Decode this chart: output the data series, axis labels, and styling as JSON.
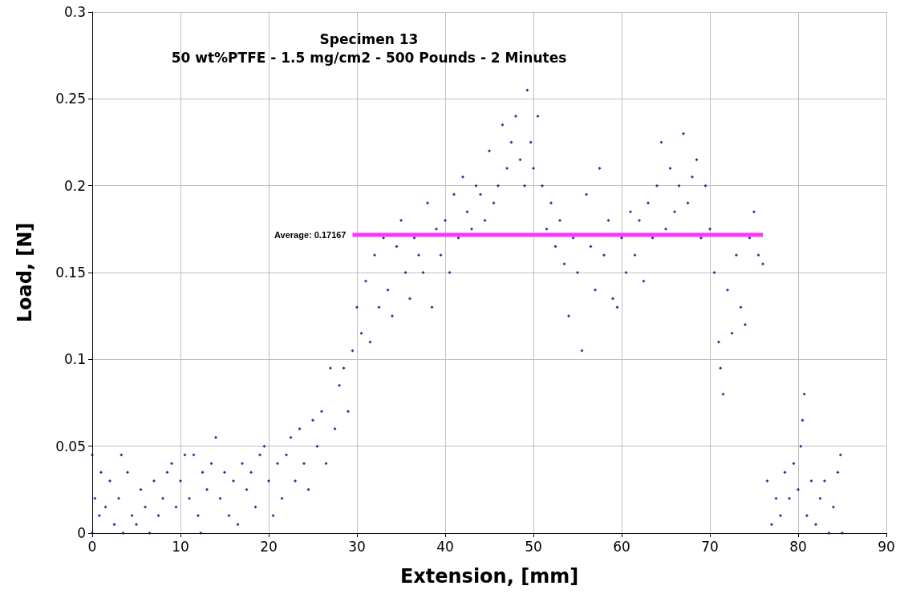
{
  "chart_data": {
    "type": "scatter",
    "title": "Specimen 13",
    "subtitle": "50 wt%PTFE - 1.5 mg/cm2 - 500 Pounds - 2 Minutes",
    "xlabel": "Extension, [mm]",
    "ylabel": "Load, [N]",
    "xlim": [
      0,
      90
    ],
    "xticks": [
      0,
      10,
      20,
      30,
      40,
      50,
      60,
      70,
      80,
      90
    ],
    "ylim": [
      0,
      0.3
    ],
    "yticks": [
      0,
      0.05,
      0.1,
      0.15,
      0.2,
      0.25,
      0.3
    ],
    "grid": true,
    "marker": "diamond",
    "annotations": [
      {
        "text": "Average: 0.17167",
        "x": 29.5,
        "y": 0.17167
      }
    ],
    "series": [
      {
        "color": "#000080",
        "x": [
          0,
          0,
          0.3,
          0.8,
          1,
          1.5,
          2,
          2.5,
          3,
          3.3,
          3.5,
          4,
          4.5,
          5,
          5.5,
          6,
          6.5,
          7,
          7.5,
          8,
          8.5,
          9,
          9.5,
          10,
          10.5,
          11,
          11.5,
          12,
          12.3,
          12.5,
          13,
          13.5,
          14,
          14.5,
          15,
          15.5,
          16,
          16.5,
          17,
          17.5,
          18,
          18.5,
          19,
          19.5,
          20,
          20.5,
          21,
          21.5,
          22,
          22.5,
          23,
          23.5,
          24,
          24.5,
          25,
          25.5,
          26,
          26.5,
          27,
          27.5,
          28,
          28.5,
          29,
          29.5,
          30,
          30.5,
          31,
          31.5,
          32,
          32.5,
          33,
          33.5,
          34,
          34.5,
          35,
          35.5,
          36,
          36.5,
          37,
          37.5,
          38,
          38.5,
          39,
          39.5,
          40,
          40.5,
          41,
          41.5,
          42,
          42.5,
          43,
          43.5,
          44,
          44.5,
          45,
          45.5,
          46,
          46.5,
          47,
          47.5,
          48,
          48.5,
          49,
          49.3,
          49.7,
          50,
          50.5,
          51,
          51.5,
          52,
          52.5,
          53,
          53.5,
          54,
          54.5,
          55,
          55.5,
          56,
          56.5,
          57,
          57.5,
          58,
          58.5,
          59,
          59.5,
          60,
          60.5,
          61,
          61.5,
          62,
          62.5,
          63,
          63.5,
          64,
          64.5,
          65,
          65.5,
          66,
          66.5,
          67,
          67.5,
          68,
          68.5,
          69,
          69.5,
          70,
          70.5,
          71,
          71.2,
          71.5,
          72,
          72.5,
          73,
          73.5,
          74,
          74.5,
          75,
          75.5,
          76,
          76.5,
          77,
          77.5,
          78,
          78.5,
          79,
          79.5,
          80,
          80.3,
          80.5,
          80.7,
          81,
          81.5,
          82,
          82.5,
          83,
          83.5,
          84,
          84.5,
          84.8,
          85
        ],
        "values": [
          0,
          0.045,
          0.02,
          0.01,
          0.035,
          0.015,
          0.03,
          0.005,
          0.02,
          0.045,
          0,
          0.035,
          0.01,
          0.005,
          0.025,
          0.015,
          0,
          0.03,
          0.01,
          0.02,
          0.035,
          0.04,
          0.015,
          0.03,
          0.045,
          0.02,
          0.045,
          0.01,
          0,
          0.035,
          0.025,
          0.04,
          0.055,
          0.02,
          0.035,
          0.01,
          0.03,
          0.005,
          0.04,
          0.025,
          0.035,
          0.015,
          0.045,
          0.05,
          0.03,
          0.01,
          0.04,
          0.02,
          0.045,
          0.055,
          0.03,
          0.06,
          0.04,
          0.025,
          0.065,
          0.05,
          0.07,
          0.04,
          0.095,
          0.06,
          0.085,
          0.095,
          0.07,
          0.105,
          0.13,
          0.115,
          0.145,
          0.11,
          0.16,
          0.13,
          0.17,
          0.14,
          0.125,
          0.165,
          0.18,
          0.15,
          0.135,
          0.17,
          0.16,
          0.15,
          0.19,
          0.13,
          0.175,
          0.16,
          0.18,
          0.15,
          0.195,
          0.17,
          0.205,
          0.185,
          0.175,
          0.2,
          0.195,
          0.18,
          0.22,
          0.19,
          0.2,
          0.235,
          0.21,
          0.225,
          0.24,
          0.215,
          0.2,
          0.255,
          0.225,
          0.21,
          0.24,
          0.2,
          0.175,
          0.19,
          0.165,
          0.18,
          0.155,
          0.125,
          0.17,
          0.15,
          0.105,
          0.195,
          0.165,
          0.14,
          0.21,
          0.16,
          0.18,
          0.135,
          0.13,
          0.17,
          0.15,
          0.185,
          0.16,
          0.18,
          0.145,
          0.19,
          0.17,
          0.2,
          0.225,
          0.175,
          0.21,
          0.185,
          0.2,
          0.23,
          0.19,
          0.205,
          0.215,
          0.17,
          0.2,
          0.175,
          0.15,
          0.11,
          0.095,
          0.08,
          0.14,
          0.115,
          0.16,
          0.13,
          0.12,
          0.17,
          0.185,
          0.16,
          0.155,
          0.03,
          0.005,
          0.02,
          0.01,
          0.035,
          0.02,
          0.04,
          0.025,
          0.05,
          0.065,
          0.08,
          0.01,
          0.03,
          0.005,
          0.02,
          0.03,
          0,
          0.015,
          0.035,
          0.045,
          0
        ]
      },
      {
        "type": "line",
        "color": "#ff33ff",
        "marker": "none",
        "x": [
          29.5,
          76
        ],
        "values": [
          0.17167,
          0.17167
        ]
      }
    ]
  }
}
